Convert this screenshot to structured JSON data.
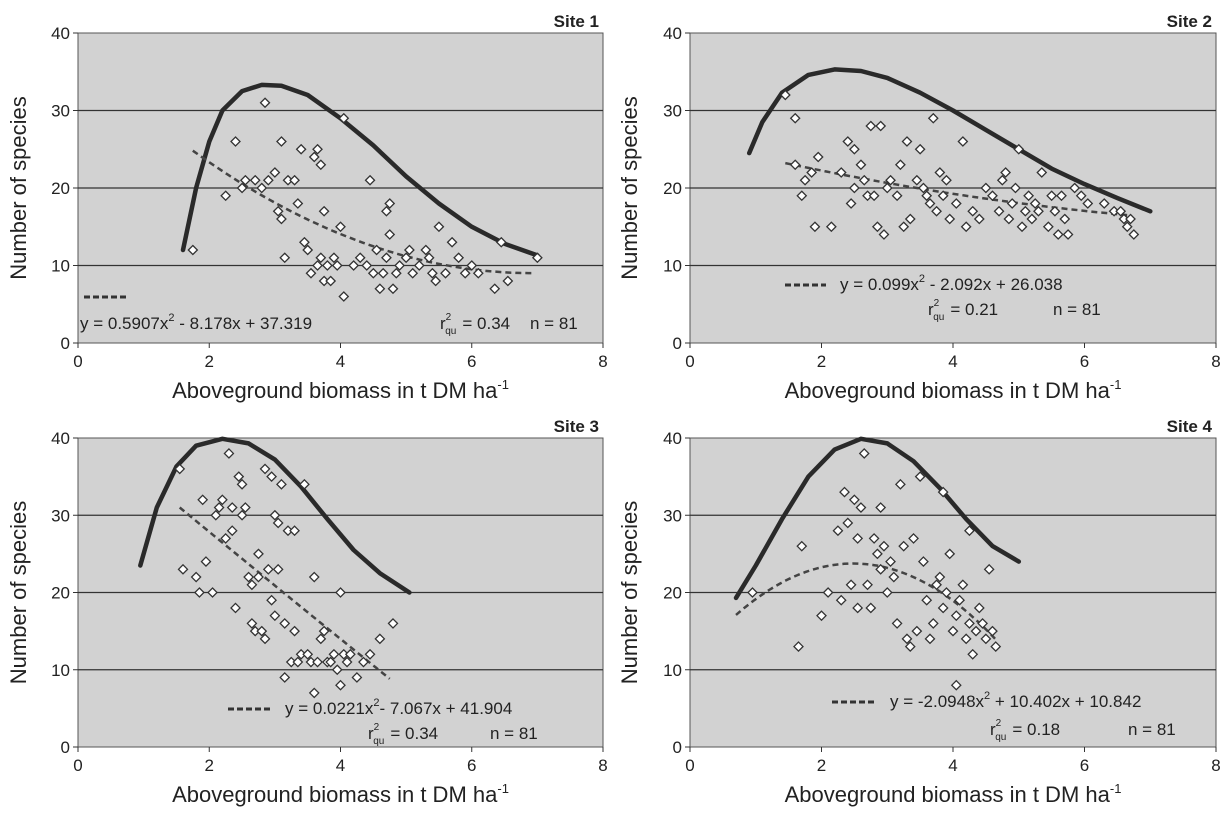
{
  "figure": {
    "ylabel": "Number of species",
    "xlabel": "Aboveground biomass in t DM ha",
    "xlabel_sup": "-1"
  },
  "colors": {
    "plot_bg": "#d2d2d2",
    "ink": "#2a2a2a",
    "point_fill": "#ffffff"
  },
  "chart_data": [
    {
      "type": "scatter",
      "title": "Site 1",
      "xlim": [
        0,
        8
      ],
      "ylim": [
        0,
        40
      ],
      "xticks": [
        0,
        2,
        4,
        6,
        8
      ],
      "yticks": [
        0,
        10,
        20,
        30,
        40
      ],
      "grid": "horizontal",
      "points": [
        [
          1.75,
          12
        ],
        [
          2.25,
          19
        ],
        [
          2.4,
          26
        ],
        [
          2.5,
          20
        ],
        [
          2.55,
          21
        ],
        [
          2.7,
          21
        ],
        [
          2.8,
          20
        ],
        [
          2.85,
          31
        ],
        [
          2.9,
          21
        ],
        [
          3.0,
          22
        ],
        [
          3.05,
          17
        ],
        [
          3.1,
          16
        ],
        [
          3.1,
          26
        ],
        [
          3.15,
          11
        ],
        [
          3.2,
          21
        ],
        [
          3.3,
          21
        ],
        [
          3.35,
          18
        ],
        [
          3.4,
          25
        ],
        [
          3.45,
          13
        ],
        [
          3.5,
          12
        ],
        [
          3.55,
          9
        ],
        [
          3.6,
          24
        ],
        [
          3.65,
          10
        ],
        [
          3.65,
          25
        ],
        [
          3.7,
          11
        ],
        [
          3.7,
          23
        ],
        [
          3.75,
          8
        ],
        [
          3.75,
          17
        ],
        [
          3.8,
          10
        ],
        [
          3.85,
          8
        ],
        [
          3.9,
          11
        ],
        [
          3.95,
          10
        ],
        [
          4.0,
          15
        ],
        [
          4.05,
          6
        ],
        [
          4.05,
          29
        ],
        [
          4.2,
          10
        ],
        [
          4.3,
          11
        ],
        [
          4.4,
          10
        ],
        [
          4.45,
          21
        ],
        [
          4.5,
          9
        ],
        [
          4.55,
          12
        ],
        [
          4.6,
          7
        ],
        [
          4.65,
          9
        ],
        [
          4.7,
          11
        ],
        [
          4.7,
          17
        ],
        [
          4.75,
          14
        ],
        [
          4.75,
          18
        ],
        [
          4.8,
          7
        ],
        [
          4.85,
          9
        ],
        [
          4.9,
          10
        ],
        [
          5.0,
          11
        ],
        [
          5.05,
          12
        ],
        [
          5.1,
          9
        ],
        [
          5.2,
          10
        ],
        [
          5.3,
          12
        ],
        [
          5.35,
          11
        ],
        [
          5.4,
          9
        ],
        [
          5.45,
          8
        ],
        [
          5.5,
          15
        ],
        [
          5.6,
          9
        ],
        [
          5.7,
          13
        ],
        [
          5.8,
          11
        ],
        [
          5.9,
          9
        ],
        [
          6.0,
          10
        ],
        [
          6.1,
          9
        ],
        [
          6.35,
          7
        ],
        [
          6.45,
          13
        ],
        [
          6.55,
          8
        ],
        [
          7.0,
          11
        ]
      ],
      "envelope": [
        [
          1.6,
          12
        ],
        [
          1.8,
          20
        ],
        [
          2.0,
          26
        ],
        [
          2.2,
          30
        ],
        [
          2.5,
          32.5
        ],
        [
          2.8,
          33.3
        ],
        [
          3.1,
          33.2
        ],
        [
          3.5,
          32
        ],
        [
          4.0,
          29
        ],
        [
          4.5,
          25.5
        ],
        [
          5.0,
          21.5
        ],
        [
          5.5,
          18
        ],
        [
          6.0,
          15
        ],
        [
          6.5,
          12.8
        ],
        [
          7.0,
          11.3
        ]
      ],
      "fit": {
        "coeffs": [
          0.5907,
          -8.178,
          37.319
        ],
        "x_range": [
          1.75,
          6.95
        ]
      },
      "equation": "y = 0.5907x",
      "equation_rest": " - 8.178x + 37.319",
      "r2_prefix": "r",
      "r2_sup": "2",
      "r2_sub": "qu",
      "r2_value": "= 0.34",
      "n_text": "n = 81"
    },
    {
      "type": "scatter",
      "title": "Site 2",
      "xlim": [
        0,
        8
      ],
      "ylim": [
        0,
        40
      ],
      "xticks": [
        0,
        2,
        4,
        6,
        8
      ],
      "yticks": [
        0,
        10,
        20,
        30,
        40
      ],
      "grid": "horizontal",
      "points": [
        [
          1.45,
          32
        ],
        [
          1.6,
          29
        ],
        [
          1.6,
          23
        ],
        [
          1.7,
          19
        ],
        [
          1.75,
          21
        ],
        [
          1.85,
          22
        ],
        [
          1.9,
          15
        ],
        [
          1.95,
          24
        ],
        [
          2.15,
          15
        ],
        [
          2.3,
          22
        ],
        [
          2.4,
          26
        ],
        [
          2.45,
          18
        ],
        [
          2.5,
          25
        ],
        [
          2.5,
          20
        ],
        [
          2.6,
          23
        ],
        [
          2.65,
          21
        ],
        [
          2.7,
          19
        ],
        [
          2.75,
          28
        ],
        [
          2.8,
          19
        ],
        [
          2.85,
          15
        ],
        [
          2.9,
          28
        ],
        [
          2.95,
          14
        ],
        [
          3.0,
          20
        ],
        [
          3.05,
          21
        ],
        [
          3.15,
          19
        ],
        [
          3.2,
          23
        ],
        [
          3.25,
          15
        ],
        [
          3.3,
          26
        ],
        [
          3.35,
          16
        ],
        [
          3.45,
          21
        ],
        [
          3.5,
          25
        ],
        [
          3.55,
          20
        ],
        [
          3.6,
          19
        ],
        [
          3.65,
          18
        ],
        [
          3.7,
          29
        ],
        [
          3.75,
          17
        ],
        [
          3.8,
          22
        ],
        [
          3.85,
          19
        ],
        [
          3.9,
          21
        ],
        [
          3.95,
          16
        ],
        [
          4.05,
          18
        ],
        [
          4.15,
          26
        ],
        [
          4.2,
          15
        ],
        [
          4.3,
          17
        ],
        [
          4.4,
          16
        ],
        [
          4.5,
          20
        ],
        [
          4.6,
          19
        ],
        [
          4.7,
          17
        ],
        [
          4.75,
          21
        ],
        [
          4.8,
          22
        ],
        [
          4.85,
          16
        ],
        [
          4.9,
          18
        ],
        [
          4.95,
          20
        ],
        [
          5.0,
          25
        ],
        [
          5.05,
          15
        ],
        [
          5.1,
          17
        ],
        [
          5.15,
          19
        ],
        [
          5.2,
          16
        ],
        [
          5.25,
          18
        ],
        [
          5.3,
          17
        ],
        [
          5.35,
          22
        ],
        [
          5.45,
          15
        ],
        [
          5.5,
          19
        ],
        [
          5.55,
          17
        ],
        [
          5.6,
          14
        ],
        [
          5.65,
          19
        ],
        [
          5.7,
          16
        ],
        [
          5.75,
          14
        ],
        [
          5.85,
          20
        ],
        [
          5.95,
          19
        ],
        [
          6.05,
          18
        ],
        [
          6.3,
          18
        ],
        [
          6.45,
          17
        ],
        [
          6.55,
          17
        ],
        [
          6.6,
          16
        ],
        [
          6.65,
          15
        ],
        [
          6.7,
          16
        ],
        [
          6.75,
          14
        ]
      ],
      "envelope": [
        [
          0.9,
          24.5
        ],
        [
          1.1,
          28.5
        ],
        [
          1.4,
          32.3
        ],
        [
          1.8,
          34.6
        ],
        [
          2.2,
          35.3
        ],
        [
          2.6,
          35.1
        ],
        [
          3.0,
          34.2
        ],
        [
          3.5,
          32.3
        ],
        [
          4.0,
          30
        ],
        [
          4.5,
          27.5
        ],
        [
          5.0,
          25
        ],
        [
          5.5,
          22.5
        ],
        [
          6.0,
          20.5
        ],
        [
          6.5,
          18.7
        ],
        [
          7.0,
          17
        ]
      ],
      "fit": {
        "coeffs": [
          0.099,
          -2.092,
          26.038
        ],
        "x_range": [
          1.45,
          6.7
        ]
      },
      "equation": "y = 0.099x",
      "equation_rest": " - 2.092x + 26.038",
      "r2_prefix": "r",
      "r2_sup": "2",
      "r2_sub": "qu",
      "r2_value": "= 0.21",
      "n_text": "n = 81"
    },
    {
      "type": "scatter",
      "title": "Site 3",
      "xlim": [
        0,
        8
      ],
      "ylim": [
        0,
        40
      ],
      "xticks": [
        0,
        2,
        4,
        6,
        8
      ],
      "yticks": [
        0,
        10,
        20,
        30,
        40
      ],
      "grid": "horizontal",
      "points": [
        [
          1.55,
          36
        ],
        [
          1.6,
          23
        ],
        [
          1.8,
          22
        ],
        [
          1.85,
          20
        ],
        [
          1.9,
          32
        ],
        [
          1.95,
          24
        ],
        [
          2.05,
          20
        ],
        [
          2.1,
          30
        ],
        [
          2.15,
          31
        ],
        [
          2.2,
          32
        ],
        [
          2.25,
          27
        ],
        [
          2.3,
          38
        ],
        [
          2.35,
          31
        ],
        [
          2.35,
          28
        ],
        [
          2.4,
          18
        ],
        [
          2.45,
          35
        ],
        [
          2.5,
          30
        ],
        [
          2.5,
          34
        ],
        [
          2.55,
          31
        ],
        [
          2.6,
          22
        ],
        [
          2.65,
          21
        ],
        [
          2.65,
          16
        ],
        [
          2.7,
          15
        ],
        [
          2.75,
          22
        ],
        [
          2.75,
          25
        ],
        [
          2.8,
          15
        ],
        [
          2.85,
          36
        ],
        [
          2.85,
          14
        ],
        [
          2.9,
          23
        ],
        [
          2.95,
          19
        ],
        [
          2.95,
          35
        ],
        [
          3.0,
          17
        ],
        [
          3.0,
          30
        ],
        [
          3.05,
          23
        ],
        [
          3.05,
          29
        ],
        [
          3.1,
          34
        ],
        [
          3.15,
          9
        ],
        [
          3.15,
          16
        ],
        [
          3.2,
          28
        ],
        [
          3.25,
          11
        ],
        [
          3.3,
          15
        ],
        [
          3.3,
          28
        ],
        [
          3.35,
          11
        ],
        [
          3.4,
          12
        ],
        [
          3.45,
          34
        ],
        [
          3.5,
          12
        ],
        [
          3.55,
          11
        ],
        [
          3.6,
          7
        ],
        [
          3.6,
          22
        ],
        [
          3.65,
          11
        ],
        [
          3.7,
          14
        ],
        [
          3.75,
          15
        ],
        [
          3.8,
          11
        ],
        [
          3.85,
          11
        ],
        [
          3.9,
          12
        ],
        [
          3.95,
          10
        ],
        [
          4.0,
          20
        ],
        [
          4.0,
          8
        ],
        [
          4.05,
          12
        ],
        [
          4.1,
          11
        ],
        [
          4.15,
          12
        ],
        [
          4.25,
          9
        ],
        [
          4.35,
          11
        ],
        [
          4.45,
          12
        ],
        [
          4.6,
          14
        ],
        [
          4.8,
          16
        ]
      ],
      "envelope": [
        [
          0.95,
          23.5
        ],
        [
          1.2,
          31
        ],
        [
          1.5,
          36.3
        ],
        [
          1.8,
          39
        ],
        [
          2.2,
          39.9
        ],
        [
          2.6,
          39.3
        ],
        [
          3.0,
          37.2
        ],
        [
          3.4,
          33.7
        ],
        [
          3.8,
          29.5
        ],
        [
          4.2,
          25.5
        ],
        [
          4.6,
          22.5
        ],
        [
          5.05,
          20
        ]
      ],
      "fit": {
        "coeffs": [
          0.0221,
          -7.067,
          41.904
        ],
        "x_range": [
          1.55,
          4.75
        ]
      },
      "equation": "y = 0.0221x",
      "equation_rest": "- 7.067x + 41.904",
      "r2_prefix": "r",
      "r2_sup": "2",
      "r2_sub": "qu",
      "r2_value": "= 0.34",
      "n_text": "n = 81"
    },
    {
      "type": "scatter",
      "title": "Site 4",
      "xlim": [
        0,
        8
      ],
      "ylim": [
        0,
        40
      ],
      "xticks": [
        0,
        2,
        4,
        6,
        8
      ],
      "yticks": [
        0,
        10,
        20,
        30,
        40
      ],
      "grid": "horizontal",
      "points": [
        [
          0.95,
          20
        ],
        [
          1.65,
          13
        ],
        [
          1.7,
          26
        ],
        [
          2.0,
          17
        ],
        [
          2.1,
          20
        ],
        [
          2.25,
          28
        ],
        [
          2.3,
          19
        ],
        [
          2.35,
          33
        ],
        [
          2.4,
          29
        ],
        [
          2.45,
          21
        ],
        [
          2.5,
          32
        ],
        [
          2.55,
          27
        ],
        [
          2.55,
          18
        ],
        [
          2.6,
          31
        ],
        [
          2.65,
          38
        ],
        [
          2.7,
          21
        ],
        [
          2.75,
          18
        ],
        [
          2.8,
          27
        ],
        [
          2.85,
          25
        ],
        [
          2.9,
          23
        ],
        [
          2.95,
          26
        ],
        [
          3.0,
          20
        ],
        [
          3.05,
          24
        ],
        [
          3.1,
          22
        ],
        [
          3.15,
          16
        ],
        [
          3.2,
          34
        ],
        [
          3.25,
          26
        ],
        [
          3.3,
          14
        ],
        [
          3.35,
          13
        ],
        [
          3.4,
          27
        ],
        [
          3.45,
          15
        ],
        [
          3.5,
          35
        ],
        [
          3.55,
          24
        ],
        [
          3.6,
          19
        ],
        [
          3.65,
          14
        ],
        [
          3.7,
          16
        ],
        [
          3.75,
          21
        ],
        [
          3.8,
          22
        ],
        [
          3.85,
          18
        ],
        [
          3.9,
          20
        ],
        [
          3.95,
          25
        ],
        [
          4.0,
          15
        ],
        [
          4.05,
          17
        ],
        [
          4.1,
          19
        ],
        [
          4.15,
          21
        ],
        [
          4.2,
          14
        ],
        [
          4.25,
          16
        ],
        [
          4.3,
          12
        ],
        [
          4.35,
          15
        ],
        [
          4.4,
          18
        ],
        [
          4.45,
          16
        ],
        [
          4.5,
          14
        ],
        [
          4.55,
          23
        ],
        [
          4.6,
          15
        ],
        [
          4.65,
          13
        ],
        [
          4.05,
          8
        ],
        [
          3.85,
          33
        ],
        [
          4.25,
          28
        ],
        [
          2.9,
          31
        ]
      ],
      "envelope": [
        [
          0.7,
          19.3
        ],
        [
          1.0,
          23.5
        ],
        [
          1.4,
          29.5
        ],
        [
          1.8,
          35
        ],
        [
          2.2,
          38.5
        ],
        [
          2.6,
          39.9
        ],
        [
          3.0,
          39.3
        ],
        [
          3.4,
          37
        ],
        [
          3.8,
          33.5
        ],
        [
          4.2,
          29.5
        ],
        [
          4.6,
          26
        ],
        [
          5.0,
          24
        ]
      ],
      "fit": {
        "coeffs": [
          -2.0948,
          10.402,
          10.842
        ],
        "x_range": [
          0.7,
          4.65
        ]
      },
      "equation": "y = -2.0948x",
      "equation_rest": " + 10.402x + 10.842",
      "r2_prefix": "r",
      "r2_sup": "2",
      "r2_sub": "qu",
      "r2_value": "= 0.18",
      "n_text": "n = 81"
    }
  ]
}
